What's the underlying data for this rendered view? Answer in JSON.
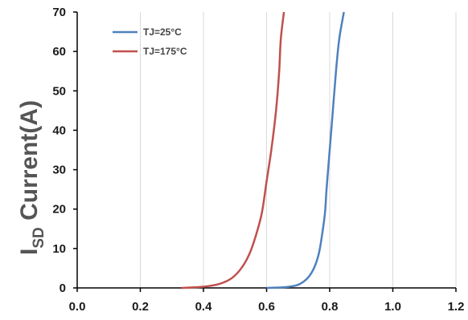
{
  "chart_data": {
    "type": "line",
    "title": "",
    "xlabel": "",
    "ylabel": {
      "main": "I",
      "subscript": "SD",
      "rest": " Current(A)"
    },
    "xlim": [
      0.0,
      1.2
    ],
    "ylim": [
      0,
      70
    ],
    "x_ticks": [
      "0.0",
      "0.2",
      "0.4",
      "0.6",
      "0.8",
      "1.0",
      "1.2"
    ],
    "x_tick_values": [
      0.0,
      0.2,
      0.4,
      0.6,
      0.8,
      1.0,
      1.2
    ],
    "y_ticks": [
      "0",
      "10",
      "20",
      "30",
      "40",
      "50",
      "60",
      "70"
    ],
    "y_tick_values": [
      0,
      10,
      20,
      30,
      40,
      50,
      60,
      70
    ],
    "grid": {
      "vertical": true,
      "horizontal": false
    },
    "legend_position": "top-left",
    "series": [
      {
        "name": "TJ=25°C",
        "color": "#4f81bd",
        "points": [
          [
            0.6,
            0.0
          ],
          [
            0.66,
            0.2
          ],
          [
            0.7,
            0.8
          ],
          [
            0.73,
            2.5
          ],
          [
            0.75,
            5.0
          ],
          [
            0.765,
            8.5
          ],
          [
            0.775,
            13.0
          ],
          [
            0.785,
            19.0
          ],
          [
            0.79,
            25.0
          ],
          [
            0.8,
            35.0
          ],
          [
            0.81,
            45.0
          ],
          [
            0.82,
            55.0
          ],
          [
            0.83,
            63.0
          ],
          [
            0.845,
            70.0
          ]
        ]
      },
      {
        "name": "TJ=175°C",
        "color": "#c0504d",
        "points": [
          [
            0.33,
            0.0
          ],
          [
            0.4,
            0.3
          ],
          [
            0.45,
            1.0
          ],
          [
            0.49,
            2.5
          ],
          [
            0.52,
            5.0
          ],
          [
            0.545,
            8.5
          ],
          [
            0.565,
            13.0
          ],
          [
            0.585,
            19.0
          ],
          [
            0.6,
            27.0
          ],
          [
            0.615,
            35.0
          ],
          [
            0.63,
            45.0
          ],
          [
            0.64,
            55.0
          ],
          [
            0.645,
            63.0
          ],
          [
            0.655,
            70.0
          ]
        ]
      }
    ]
  }
}
